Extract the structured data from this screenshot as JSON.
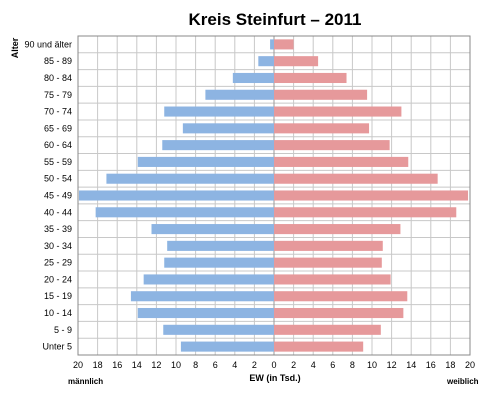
{
  "chart_data": {
    "type": "bar",
    "orientation": "horizontal-pyramid",
    "title": "Kreis Steinfurt – 2011",
    "ylabel": "Alter",
    "xlabel": "EW (in Tsd.)",
    "left_label": "männlich",
    "right_label": "weiblich",
    "xlim": [
      0,
      20
    ],
    "xticks": [
      20,
      18,
      16,
      14,
      12,
      10,
      8,
      6,
      4,
      2,
      0,
      2,
      4,
      6,
      8,
      10,
      12,
      14,
      16,
      18,
      20
    ],
    "grid": true,
    "categories": [
      "90 und älter",
      "85 - 89",
      "80 - 84",
      "75 - 79",
      "70 - 74",
      "65 - 69",
      "60 - 64",
      "55 - 59",
      "50 - 54",
      "45 - 49",
      "40 - 44",
      "35 - 39",
      "30 - 34",
      "25 - 29",
      "20 - 24",
      "15 - 19",
      "10 - 14",
      "5 - 9",
      "Unter 5"
    ],
    "series": [
      {
        "name": "männlich",
        "color": "#8db4e2",
        "values": [
          0.4,
          1.6,
          4.2,
          7.0,
          11.2,
          9.3,
          11.4,
          13.9,
          17.1,
          19.9,
          18.2,
          12.5,
          10.9,
          11.2,
          13.3,
          14.6,
          13.9,
          11.3,
          9.5
        ]
      },
      {
        "name": "weiblich",
        "color": "#e6999b",
        "values": [
          2.0,
          4.5,
          7.4,
          9.5,
          13.0,
          9.7,
          11.8,
          13.7,
          16.7,
          19.8,
          18.6,
          12.9,
          11.1,
          11.0,
          11.9,
          13.6,
          13.2,
          10.9,
          9.1
        ]
      }
    ]
  }
}
